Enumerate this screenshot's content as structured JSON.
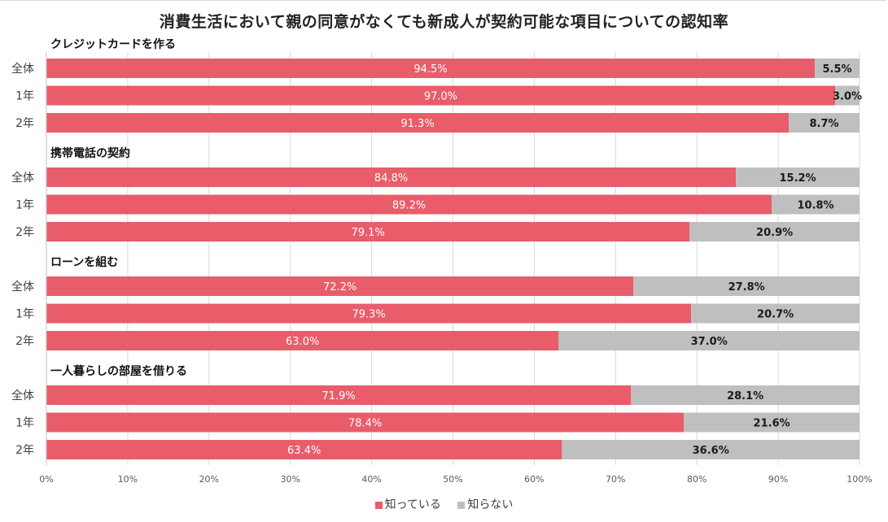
{
  "chart_data": {
    "type": "bar",
    "orientation": "horizontal",
    "stacked": true,
    "title": "消費生活において親の同意がなくても新成人が契約可能な項目についての認知率",
    "xlabel": "",
    "ylabel": "",
    "xlim": [
      0,
      100
    ],
    "xticks": [
      "0%",
      "10%",
      "20%",
      "30%",
      "40%",
      "50%",
      "60%",
      "70%",
      "80%",
      "90%",
      "100%"
    ],
    "grid": true,
    "legend_position": "bottom",
    "colors": {
      "know": "#e95c6a",
      "dont_know": "#bfbfbf"
    },
    "series": [
      {
        "name": "知っている",
        "key": "know"
      },
      {
        "name": "知らない",
        "key": "dont_know"
      }
    ],
    "groups": [
      {
        "label": "クレジットカードを作る",
        "rows": [
          {
            "category": "全体",
            "know": 94.5,
            "dont_know": 5.5,
            "know_label": "94.5%",
            "dont_know_label": "5.5%"
          },
          {
            "category": "1年",
            "know": 97.0,
            "dont_know": 3.0,
            "know_label": "97.0%",
            "dont_know_label": "3.0%"
          },
          {
            "category": "2年",
            "know": 91.3,
            "dont_know": 8.7,
            "know_label": "91.3%",
            "dont_know_label": "8.7%"
          }
        ]
      },
      {
        "label": "携帯電話の契約",
        "rows": [
          {
            "category": "全体",
            "know": 84.8,
            "dont_know": 15.2,
            "know_label": "84.8%",
            "dont_know_label": "15.2%"
          },
          {
            "category": "1年",
            "know": 89.2,
            "dont_know": 10.8,
            "know_label": "89.2%",
            "dont_know_label": "10.8%"
          },
          {
            "category": "2年",
            "know": 79.1,
            "dont_know": 20.9,
            "know_label": "79.1%",
            "dont_know_label": "20.9%"
          }
        ]
      },
      {
        "label": "ローンを組む",
        "rows": [
          {
            "category": "全体",
            "know": 72.2,
            "dont_know": 27.8,
            "know_label": "72.2%",
            "dont_know_label": "27.8%"
          },
          {
            "category": "1年",
            "know": 79.3,
            "dont_know": 20.7,
            "know_label": "79.3%",
            "dont_know_label": "20.7%"
          },
          {
            "category": "2年",
            "know": 63.0,
            "dont_know": 37.0,
            "know_label": "63.0%",
            "dont_know_label": "37.0%"
          }
        ]
      },
      {
        "label": "一人暮らしの部屋を借りる",
        "rows": [
          {
            "category": "全体",
            "know": 71.9,
            "dont_know": 28.1,
            "know_label": "71.9%",
            "dont_know_label": "28.1%"
          },
          {
            "category": "1年",
            "know": 78.4,
            "dont_know": 21.6,
            "know_label": "78.4%",
            "dont_know_label": "21.6%"
          },
          {
            "category": "2年",
            "know": 63.4,
            "dont_know": 36.6,
            "know_label": "63.4%",
            "dont_know_label": "36.6%"
          }
        ]
      }
    ]
  }
}
